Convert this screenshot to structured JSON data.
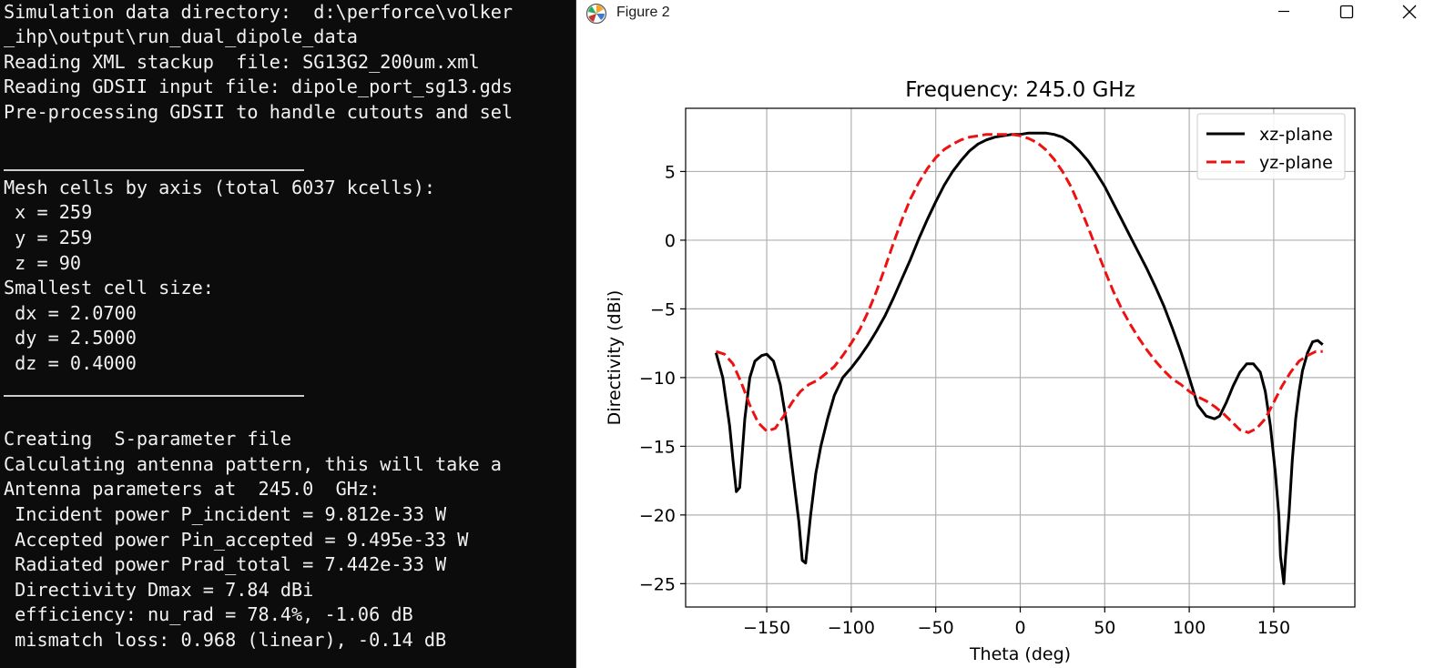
{
  "terminal": {
    "lines": [
      "Simulation data directory:  d:\\perforce\\volker",
      "_ihp\\output\\run_dual_dipole_data",
      "Reading XML stackup  file: SG13G2_200um.xml",
      "Reading GDSII input file: dipole_port_sg13.gds",
      "Pre-processing GDSII to handle cutouts and sel",
      "",
      "",
      "Mesh cells by axis (total 6037 kcells):",
      " x = 259",
      " y = 259",
      " z = 90",
      "Smallest cell size:",
      " dx = 2.0700",
      " dy = 2.5000",
      " dz = 0.4000",
      "",
      "",
      "Creating  S-parameter file",
      "Calculating antenna pattern, this will take a",
      "Antenna parameters at  245.0  GHz:",
      " Incident power P_incident = 9.812e-33 W",
      " Accepted power Pin_accepted = 9.495e-33 W",
      " Radiated power Prad_total = 7.442e-33 W",
      " Directivity Dmax = 7.84 dBi",
      " efficiency: nu_rad = 78.4%, -1.06 dB",
      " mismatch loss: 0.968 (linear), -0.14 dB"
    ]
  },
  "window": {
    "title": "Figure 2",
    "app_icon": "matplotlib-icon",
    "minimize_icon": "minimize-icon",
    "maximize_icon": "maximize-icon",
    "close_icon": "close-icon"
  },
  "chart_data": {
    "type": "line",
    "title": "Frequency: 245.0 GHz",
    "xlabel": "Theta (deg)",
    "ylabel": "Directivity (dBi)",
    "xlim": [
      -198,
      198
    ],
    "ylim": [
      -26.7,
      9.6
    ],
    "xticks": [
      -150,
      -100,
      -50,
      0,
      50,
      100,
      150
    ],
    "yticks": [
      5,
      0,
      -5,
      -10,
      -15,
      -20,
      -25
    ],
    "grid": true,
    "legend": "top-right",
    "series": [
      {
        "name": "xz-plane",
        "color": "#000000",
        "style": "solid",
        "points": [
          [
            -180,
            -8.2
          ],
          [
            -176,
            -10
          ],
          [
            -172,
            -13.5
          ],
          [
            -170,
            -16
          ],
          [
            -168,
            -18.3
          ],
          [
            -166,
            -18
          ],
          [
            -163,
            -13
          ],
          [
            -160,
            -10
          ],
          [
            -157,
            -8.8
          ],
          [
            -153,
            -8.4
          ],
          [
            -150,
            -8.3
          ],
          [
            -146,
            -8.8
          ],
          [
            -142,
            -10.5
          ],
          [
            -138,
            -13.5
          ],
          [
            -134,
            -17.5
          ],
          [
            -131,
            -20.5
          ],
          [
            -129,
            -23.3
          ],
          [
            -127,
            -23.5
          ],
          [
            -124,
            -20
          ],
          [
            -121,
            -17
          ],
          [
            -118,
            -15
          ],
          [
            -114,
            -13
          ],
          [
            -110,
            -11.3
          ],
          [
            -105,
            -10
          ],
          [
            -100,
            -9.3
          ],
          [
            -95,
            -8.5
          ],
          [
            -90,
            -7.6
          ],
          [
            -85,
            -6.6
          ],
          [
            -80,
            -5.5
          ],
          [
            -75,
            -4.2
          ],
          [
            -70,
            -2.8
          ],
          [
            -65,
            -1.4
          ],
          [
            -60,
            0.1
          ],
          [
            -55,
            1.5
          ],
          [
            -50,
            2.8
          ],
          [
            -45,
            4.0
          ],
          [
            -40,
            5.0
          ],
          [
            -35,
            5.8
          ],
          [
            -30,
            6.5
          ],
          [
            -25,
            7.0
          ],
          [
            -20,
            7.3
          ],
          [
            -15,
            7.5
          ],
          [
            -10,
            7.6
          ],
          [
            -5,
            7.7
          ],
          [
            0,
            7.7
          ],
          [
            5,
            7.8
          ],
          [
            10,
            7.8
          ],
          [
            15,
            7.8
          ],
          [
            20,
            7.7
          ],
          [
            25,
            7.5
          ],
          [
            30,
            7.1
          ],
          [
            35,
            6.5
          ],
          [
            40,
            5.8
          ],
          [
            45,
            4.9
          ],
          [
            50,
            3.9
          ],
          [
            55,
            2.7
          ],
          [
            60,
            1.5
          ],
          [
            65,
            0.3
          ],
          [
            70,
            -0.9
          ],
          [
            75,
            -2.1
          ],
          [
            80,
            -3.4
          ],
          [
            85,
            -4.8
          ],
          [
            90,
            -6.4
          ],
          [
            95,
            -8.1
          ],
          [
            100,
            -10
          ],
          [
            105,
            -12
          ],
          [
            110,
            -12.8
          ],
          [
            115,
            -13
          ],
          [
            118,
            -12.8
          ],
          [
            122,
            -11.8
          ],
          [
            126,
            -10.6
          ],
          [
            130,
            -9.6
          ],
          [
            134,
            -9
          ],
          [
            138,
            -9
          ],
          [
            142,
            -9.6
          ],
          [
            145,
            -11
          ],
          [
            148,
            -13.5
          ],
          [
            151,
            -17
          ],
          [
            153,
            -20
          ],
          [
            154,
            -23
          ],
          [
            155,
            -24
          ],
          [
            156,
            -25
          ],
          [
            157,
            -23
          ],
          [
            159,
            -20
          ],
          [
            161,
            -16
          ],
          [
            163,
            -13
          ],
          [
            165,
            -11
          ],
          [
            167,
            -9.5
          ],
          [
            170,
            -8.2
          ],
          [
            173,
            -7.4
          ],
          [
            176,
            -7.3
          ],
          [
            179,
            -7.6
          ]
        ]
      },
      {
        "name": "yz-plane",
        "color": "#ee1111",
        "style": "dashed",
        "points": [
          [
            -180,
            -8.1
          ],
          [
            -175,
            -8.3
          ],
          [
            -170,
            -9
          ],
          [
            -165,
            -10.4
          ],
          [
            -160,
            -12
          ],
          [
            -155,
            -13.3
          ],
          [
            -150,
            -13.9
          ],
          [
            -145,
            -13.7
          ],
          [
            -140,
            -12.8
          ],
          [
            -135,
            -11.8
          ],
          [
            -130,
            -11
          ],
          [
            -125,
            -10.5
          ],
          [
            -120,
            -10.2
          ],
          [
            -115,
            -9.7
          ],
          [
            -110,
            -9.2
          ],
          [
            -105,
            -8.4
          ],
          [
            -100,
            -7.5
          ],
          [
            -95,
            -6.5
          ],
          [
            -90,
            -5.2
          ],
          [
            -85,
            -3.7
          ],
          [
            -80,
            -2
          ],
          [
            -75,
            -0.2
          ],
          [
            -70,
            1.5
          ],
          [
            -65,
            3.0
          ],
          [
            -60,
            4.2
          ],
          [
            -55,
            5.2
          ],
          [
            -50,
            6.0
          ],
          [
            -45,
            6.6
          ],
          [
            -40,
            7.0
          ],
          [
            -35,
            7.3
          ],
          [
            -30,
            7.5
          ],
          [
            -25,
            7.6
          ],
          [
            -20,
            7.7
          ],
          [
            -15,
            7.7
          ],
          [
            -10,
            7.7
          ],
          [
            -5,
            7.7
          ],
          [
            0,
            7.6
          ],
          [
            5,
            7.4
          ],
          [
            10,
            7.1
          ],
          [
            15,
            6.6
          ],
          [
            20,
            5.9
          ],
          [
            25,
            5.0
          ],
          [
            30,
            3.9
          ],
          [
            35,
            2.5
          ],
          [
            40,
            1.0
          ],
          [
            45,
            -0.6
          ],
          [
            50,
            -2.2
          ],
          [
            55,
            -3.7
          ],
          [
            60,
            -5.0
          ],
          [
            65,
            -6.1
          ],
          [
            70,
            -7.1
          ],
          [
            75,
            -8.0
          ],
          [
            80,
            -8.8
          ],
          [
            85,
            -9.5
          ],
          [
            90,
            -10.1
          ],
          [
            95,
            -10.5
          ],
          [
            100,
            -11
          ],
          [
            105,
            -11.4
          ],
          [
            110,
            -11.7
          ],
          [
            115,
            -12.1
          ],
          [
            120,
            -12.6
          ],
          [
            125,
            -13.2
          ],
          [
            130,
            -13.8
          ],
          [
            135,
            -14
          ],
          [
            140,
            -13.7
          ],
          [
            145,
            -13
          ],
          [
            150,
            -11.8
          ],
          [
            155,
            -10.6
          ],
          [
            160,
            -9.6
          ],
          [
            165,
            -8.8
          ],
          [
            170,
            -8.4
          ],
          [
            175,
            -8.1
          ],
          [
            179,
            -8.1
          ]
        ]
      }
    ]
  }
}
